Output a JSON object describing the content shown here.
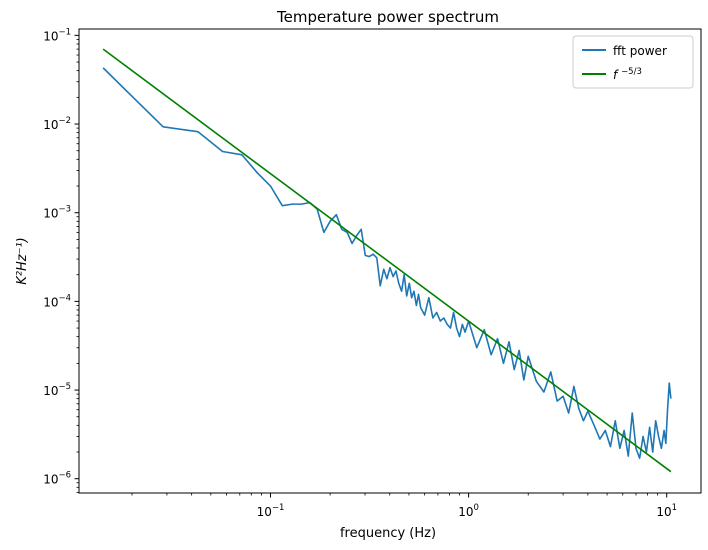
{
  "chart_data": {
    "type": "line",
    "title": "Temperature power spectrum",
    "xlabel": "frequency (Hz)",
    "ylabel": "K²Hz⁻¹)",
    "xscale": "log",
    "yscale": "log",
    "xlim": [
      0.0108,
      14.9
    ],
    "ylim": [
      6.9e-07,
      0.118
    ],
    "grid": false,
    "legend_position": "top-right",
    "x_ticks": [
      {
        "value": 0.1,
        "base": "10",
        "exp": "−1"
      },
      {
        "value": 1,
        "base": "10",
        "exp": "0"
      },
      {
        "value": 10,
        "base": "10",
        "exp": "1"
      }
    ],
    "y_ticks": [
      {
        "value": 1e-06,
        "base": "10",
        "exp": "−6"
      },
      {
        "value": 1e-05,
        "base": "10",
        "exp": "−5"
      },
      {
        "value": 0.0001,
        "base": "10",
        "exp": "−4"
      },
      {
        "value": 0.001,
        "base": "10",
        "exp": "−3"
      },
      {
        "value": 0.01,
        "base": "10",
        "exp": "−2"
      },
      {
        "value": 0.1,
        "base": "10",
        "exp": "−1"
      }
    ],
    "series": [
      {
        "name": "fft power",
        "color": "#1f77b4",
        "x": [
          0.0143,
          0.0287,
          0.043,
          0.0573,
          0.0717,
          0.086,
          0.1,
          0.1147,
          0.129,
          0.1433,
          0.158,
          0.172,
          0.186,
          0.2,
          0.215,
          0.229,
          0.244,
          0.258,
          0.272,
          0.287,
          0.301,
          0.315,
          0.33,
          0.344,
          0.358,
          0.373,
          0.387,
          0.401,
          0.416,
          0.43,
          0.444,
          0.459,
          0.473,
          0.487,
          0.502,
          0.516,
          0.53,
          0.545,
          0.559,
          0.573,
          0.6,
          0.63,
          0.66,
          0.69,
          0.72,
          0.75,
          0.78,
          0.81,
          0.84,
          0.87,
          0.9,
          0.93,
          0.96,
          1.0,
          1.1,
          1.2,
          1.3,
          1.4,
          1.5,
          1.6,
          1.7,
          1.8,
          1.9,
          2.0,
          2.2,
          2.4,
          2.6,
          2.8,
          3.0,
          3.2,
          3.4,
          3.6,
          3.8,
          4.0,
          4.3,
          4.6,
          4.9,
          5.2,
          5.5,
          5.8,
          6.1,
          6.4,
          6.7,
          7.0,
          7.3,
          7.6,
          7.9,
          8.2,
          8.5,
          8.8,
          9.1,
          9.4,
          9.7,
          9.9,
          10.1,
          10.3,
          10.5
        ],
        "y": [
          0.043,
          0.0093,
          0.0082,
          0.0049,
          0.0045,
          0.0028,
          0.002,
          0.0012,
          0.00125,
          0.00125,
          0.0013,
          0.0011,
          0.0006,
          0.0008,
          0.00095,
          0.00065,
          0.0006,
          0.00045,
          0.00055,
          0.00065,
          0.00033,
          0.00032,
          0.00034,
          0.00031,
          0.00015,
          0.00023,
          0.00018,
          0.00024,
          0.00019,
          0.00022,
          0.00016,
          0.00013,
          0.0002,
          0.000115,
          0.00016,
          0.00011,
          0.00013,
          9e-05,
          0.00012,
          8.5e-05,
          7e-05,
          0.00011,
          6.5e-05,
          7.5e-05,
          6e-05,
          6.5e-05,
          5.5e-05,
          5e-05,
          7.5e-05,
          5e-05,
          4e-05,
          5.5e-05,
          4.5e-05,
          6e-05,
          3e-05,
          4.8e-05,
          2.5e-05,
          3.8e-05,
          2e-05,
          3.5e-05,
          1.7e-05,
          2.8e-05,
          1.3e-05,
          2.4e-05,
          1.25e-05,
          9.5e-06,
          1.6e-05,
          7.5e-06,
          8.5e-06,
          5.5e-06,
          1.1e-05,
          6.2e-06,
          4.5e-06,
          5.8e-06,
          4e-06,
          2.8e-06,
          3.5e-06,
          2.3e-06,
          4.5e-06,
          2.2e-06,
          3.5e-06,
          1.8e-06,
          5.5e-06,
          2.2e-06,
          1.7e-06,
          3e-06,
          2e-06,
          3.8e-06,
          2e-06,
          4.5e-06,
          3e-06,
          2.2e-06,
          3.5e-06,
          2.5e-06,
          6e-06,
          1.2e-05,
          8e-06
        ]
      },
      {
        "name": "f^{−5/3}",
        "color": "#008000",
        "x": [
          0.0143,
          10.5
        ],
        "y": [
          0.07,
          1.2e-06
        ]
      }
    ],
    "legend": [
      {
        "label": "fft power",
        "base": "fft power",
        "sup": ""
      },
      {
        "label": "f^{−5/3}",
        "base": "f",
        "sup": "−5/3"
      }
    ]
  }
}
